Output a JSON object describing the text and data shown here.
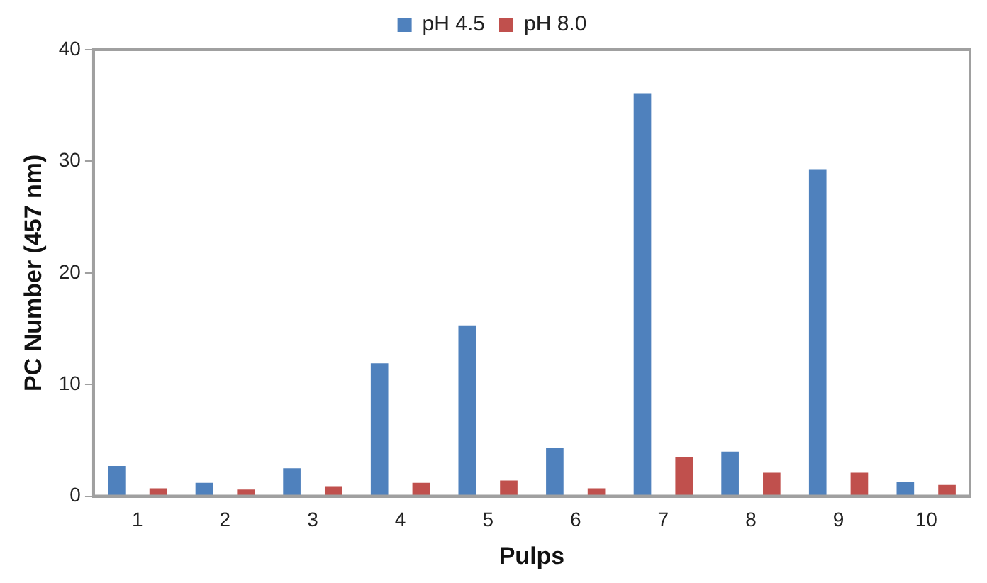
{
  "chart_data": {
    "type": "bar",
    "xlabel": "Pulps",
    "ylabel": "PC Number (457 nm)",
    "categories": [
      "1",
      "2",
      "3",
      "4",
      "5",
      "6",
      "7",
      "8",
      "9",
      "10"
    ],
    "series": [
      {
        "name": "pH 4.5",
        "color": "#4f81bd",
        "values": [
          2.7,
          1.2,
          2.5,
          11.9,
          15.3,
          4.3,
          36.1,
          4.0,
          29.3,
          1.3
        ]
      },
      {
        "name": "pH 8.0",
        "color": "#c0504d",
        "values": [
          0.7,
          0.6,
          0.9,
          1.2,
          1.4,
          0.7,
          3.5,
          2.1,
          2.1,
          1.0
        ]
      }
    ],
    "ylim": [
      0,
      40
    ],
    "yticks": [
      0,
      10,
      20,
      30,
      40
    ],
    "grid": false,
    "legend": "top"
  }
}
